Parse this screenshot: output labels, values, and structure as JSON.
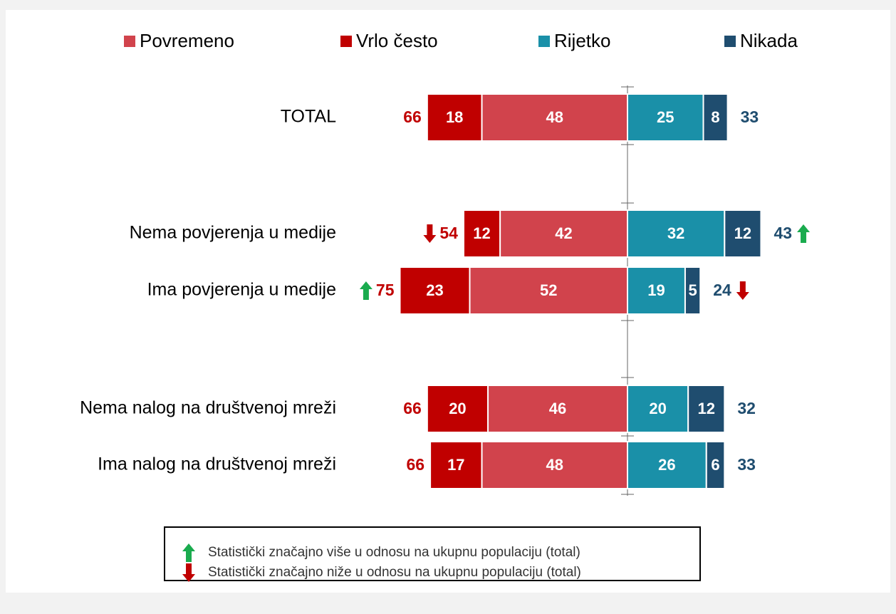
{
  "chart_data": {
    "type": "diverging_bar",
    "categories": [
      "TOTAL",
      "Nema povjerenja u medije",
      "Ima povjerenja u medije",
      "Nema nalog na društvenoj mreži",
      "Ima nalog na društvenoj mreži"
    ],
    "series": [
      {
        "name": "Povremeno",
        "color": "#d1434c",
        "side": "left",
        "values": [
          48,
          42,
          52,
          46,
          48
        ]
      },
      {
        "name": "Vrlo često",
        "color": "#c00000",
        "side": "left",
        "values": [
          18,
          12,
          23,
          20,
          17
        ]
      },
      {
        "name": "Rijetko",
        "color": "#1a90a8",
        "side": "right",
        "values": [
          25,
          32,
          19,
          20,
          26
        ]
      },
      {
        "name": "Nikada",
        "color": "#1f4d6f",
        "side": "right",
        "values": [
          8,
          12,
          5,
          12,
          6
        ]
      }
    ],
    "left_totals": [
      66,
      54,
      75,
      66,
      66
    ],
    "right_totals": [
      33,
      43,
      24,
      32,
      33
    ],
    "left_significance": [
      null,
      "down",
      "up",
      null,
      null
    ],
    "right_significance": [
      null,
      "up",
      "down",
      null,
      null
    ],
    "notes": [
      {
        "direction": "up",
        "text": "Statistički značajno više u odnosu na ukupnu populaciju (total)"
      },
      {
        "direction": "down",
        "text": "Statistički značajno niže u odnosu na ukupnu populaciju (total)"
      }
    ]
  }
}
